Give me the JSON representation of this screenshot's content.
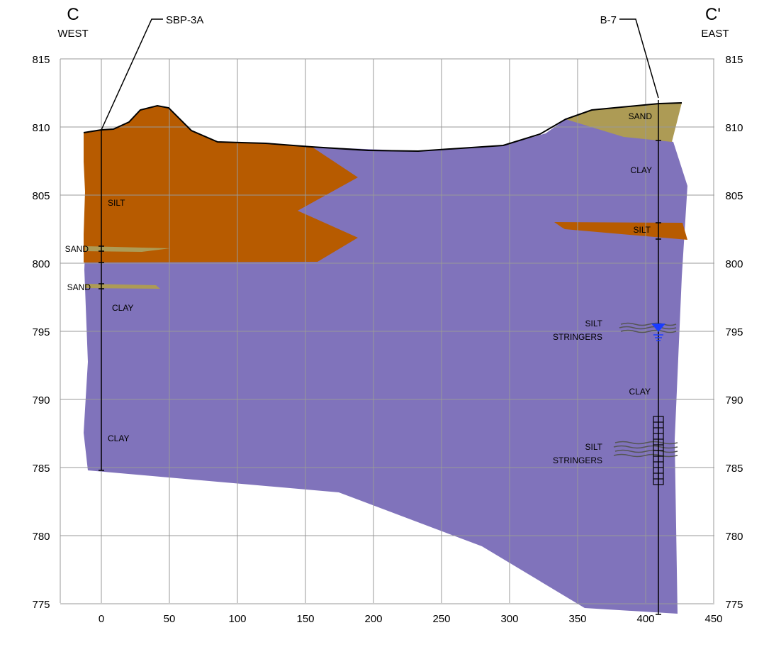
{
  "section": {
    "west_letter": "C",
    "west_direction": "WEST",
    "east_letter": "C'",
    "east_direction": "EAST"
  },
  "borings": [
    {
      "name": "SBP-3A",
      "x": 0,
      "top": 809.7,
      "bottom": 784.8
    },
    {
      "name": "B-7",
      "x": 410,
      "top": 811.6,
      "bottom": 774.2
    }
  ],
  "y_ticks": [
    "815",
    "810",
    "805",
    "800",
    "795",
    "790",
    "785",
    "780",
    "775"
  ],
  "x_ticks": [
    "0",
    "50",
    "100",
    "150",
    "200",
    "250",
    "300",
    "350",
    "400",
    "450"
  ],
  "axes": {
    "x_range": [
      -75,
      450
    ],
    "y_range": [
      772.5,
      815
    ],
    "gridlines": true
  },
  "strata": [
    {
      "name": "clay",
      "color": "#8073bb"
    },
    {
      "name": "silt",
      "color": "#b75b00"
    },
    {
      "name": "sand",
      "color": "#ad9b55"
    }
  ],
  "labels": {
    "silt_west": "SILT",
    "sand_west_1": "SAND",
    "sand_west_2": "SAND",
    "clay_west_1": "CLAY",
    "clay_west_2": "CLAY",
    "sand_east": "SAND",
    "clay_east_1": "CLAY",
    "silt_east": "SILT",
    "stringers_1_a": "SILT",
    "stringers_1_b": "STRINGERS",
    "clay_east_2": "CLAY",
    "stringers_2_a": "SILT",
    "stringers_2_b": "STRINGERS"
  },
  "water_level": {
    "elevation": 795.2,
    "color": "#1a3cff"
  },
  "screen_interval": {
    "top": 788.7,
    "bottom": 783.8
  }
}
